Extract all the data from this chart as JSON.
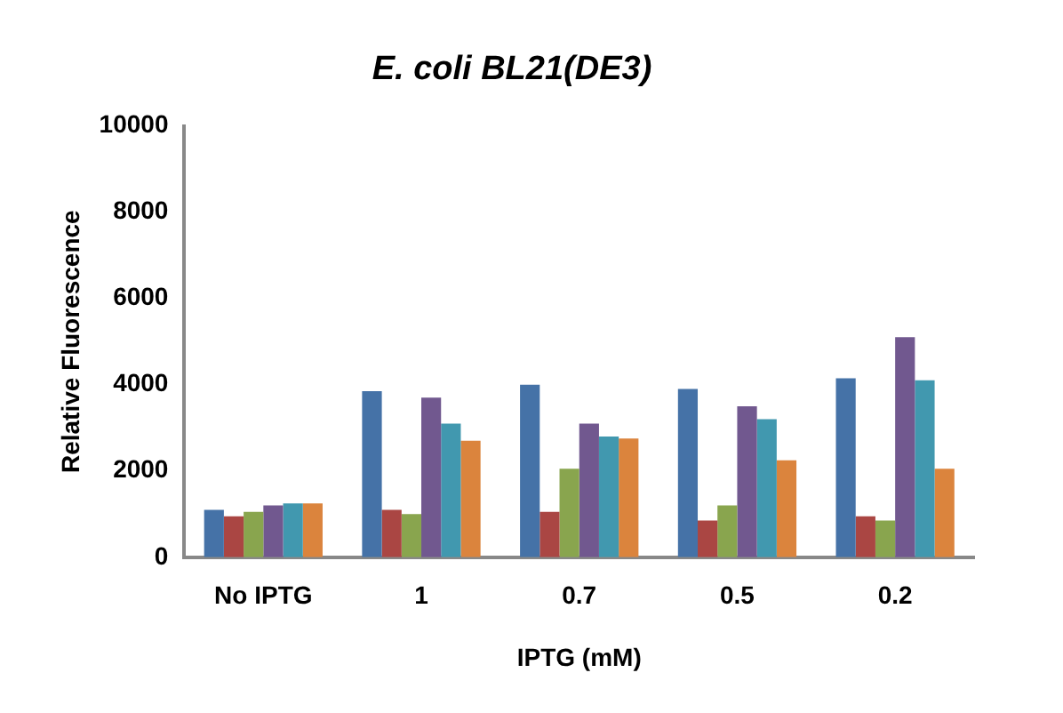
{
  "chart_data": {
    "type": "bar",
    "title": "E. coli BL21(DE3)",
    "xlabel": "IPTG (mM)",
    "ylabel": "Relative Fluorescence",
    "categories": [
      "No IPTG",
      "1",
      "0.7",
      "0.5",
      "0.2"
    ],
    "series": [
      {
        "color": "#4572a7",
        "values": [
          1100,
          3850,
          4000,
          3900,
          4150
        ]
      },
      {
        "color": "#aa4643",
        "values": [
          950,
          1100,
          1050,
          850,
          950
        ]
      },
      {
        "color": "#89a54e",
        "values": [
          1050,
          1000,
          2050,
          1200,
          850
        ]
      },
      {
        "color": "#71588f",
        "values": [
          1200,
          3700,
          3100,
          3500,
          5100
        ]
      },
      {
        "color": "#4198af",
        "values": [
          1250,
          3100,
          2800,
          3200,
          4100
        ]
      },
      {
        "color": "#db843d",
        "values": [
          1250,
          2700,
          2750,
          2250,
          2050
        ]
      }
    ],
    "ylim": [
      0,
      10000
    ],
    "yticks": [
      0,
      2000,
      4000,
      6000,
      8000,
      10000
    ],
    "grid": false,
    "legend": false
  }
}
